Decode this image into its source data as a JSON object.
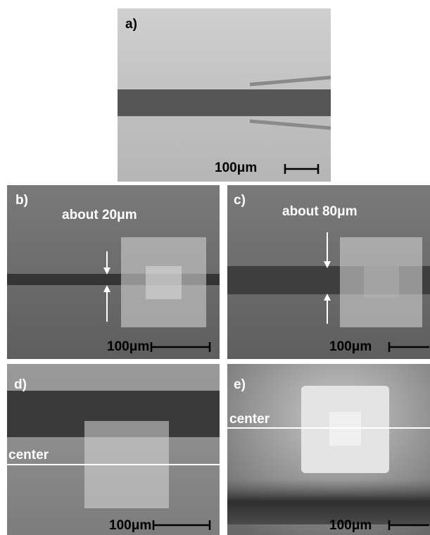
{
  "panels": [
    {
      "label": "a)",
      "scale_bar": "100μm"
    },
    {
      "label": "b)",
      "annotation": "about 20μm",
      "scale_bar": "100μm"
    },
    {
      "label": "c)",
      "annotation": "about 80μm",
      "scale_bar": "100μm"
    },
    {
      "label": "d)",
      "annotation": "center",
      "scale_bar": "100μm"
    },
    {
      "label": "e)",
      "annotation": "center",
      "scale_bar": "100μm"
    }
  ]
}
